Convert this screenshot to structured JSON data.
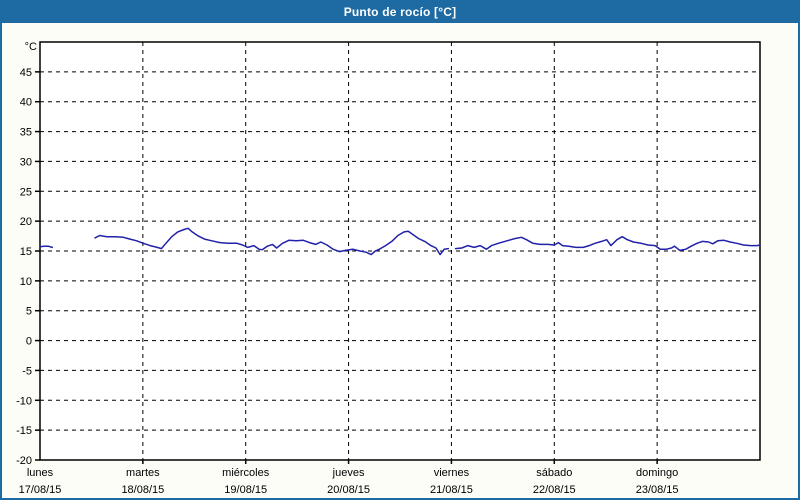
{
  "window": {
    "title": "Punto de rocío [°C]"
  },
  "colors": {
    "titlebar_bg": "#1e6aa2",
    "titlebar_text": "#ffffff",
    "window_border": "#1e6aa2",
    "window_bg": "#fcfdf7",
    "plot_bg": "#ffffff",
    "axis": "#000000",
    "grid": "#000000",
    "line": "#2121aa"
  },
  "chart_data": {
    "type": "line",
    "title": "Punto de rocío [°C]",
    "unit_label": "°C",
    "ylabel": "°C",
    "ylim": [
      -20,
      50
    ],
    "yticks": [
      45,
      40,
      35,
      30,
      25,
      20,
      15,
      10,
      5,
      0,
      -5,
      -10,
      -15,
      -20
    ],
    "grid": "dashed",
    "legend_position": "none",
    "x_days": [
      {
        "name": "lunes",
        "date": "17/08/15"
      },
      {
        "name": "martes",
        "date": "18/08/15"
      },
      {
        "name": "miércoles",
        "date": "19/08/15"
      },
      {
        "name": "jueves",
        "date": "20/08/15"
      },
      {
        "name": "viernes",
        "date": "21/08/15"
      },
      {
        "name": "sábado",
        "date": "22/08/15"
      },
      {
        "name": "domingo",
        "date": "23/08/15"
      }
    ],
    "x_unit": "day_index_0_to_7",
    "series": [
      {
        "name": "Punto de rocío",
        "color": "#2121aa",
        "segments": [
          [
            [
              0.0,
              15.7
            ],
            [
              0.04,
              15.8
            ],
            [
              0.08,
              15.8
            ],
            [
              0.12,
              15.6
            ]
          ],
          [
            [
              0.535,
              17.2
            ],
            [
              0.58,
              17.6
            ],
            [
              0.65,
              17.4
            ],
            [
              0.73,
              17.4
            ],
            [
              0.81,
              17.3
            ],
            [
              0.875,
              17.0
            ],
            [
              0.94,
              16.7
            ],
            [
              1.0,
              16.3
            ],
            [
              1.07,
              15.9
            ],
            [
              1.14,
              15.6
            ],
            [
              1.18,
              15.4
            ],
            [
              1.22,
              16.2
            ],
            [
              1.28,
              17.4
            ],
            [
              1.34,
              18.2
            ],
            [
              1.4,
              18.6
            ],
            [
              1.44,
              18.8
            ],
            [
              1.48,
              18.2
            ],
            [
              1.54,
              17.5
            ],
            [
              1.6,
              17.0
            ],
            [
              1.67,
              16.7
            ],
            [
              1.75,
              16.4
            ],
            [
              1.83,
              16.3
            ],
            [
              1.91,
              16.3
            ],
            [
              1.97,
              16.0
            ],
            [
              2.02,
              15.6
            ],
            [
              2.08,
              15.9
            ],
            [
              2.13,
              15.3
            ],
            [
              2.16,
              15.2
            ],
            [
              2.21,
              15.8
            ],
            [
              2.26,
              16.1
            ],
            [
              2.3,
              15.5
            ],
            [
              2.36,
              16.3
            ],
            [
              2.42,
              16.8
            ],
            [
              2.49,
              16.7
            ],
            [
              2.56,
              16.8
            ],
            [
              2.62,
              16.4
            ],
            [
              2.68,
              16.1
            ],
            [
              2.73,
              16.5
            ],
            [
              2.79,
              16.0
            ],
            [
              2.85,
              15.3
            ],
            [
              2.91,
              14.9
            ],
            [
              2.97,
              15.1
            ],
            [
              3.04,
              15.3
            ],
            [
              3.11,
              15.0
            ],
            [
              3.17,
              14.8
            ],
            [
              3.22,
              14.4
            ],
            [
              3.26,
              15.0
            ],
            [
              3.3,
              15.3
            ],
            [
              3.36,
              15.9
            ],
            [
              3.42,
              16.6
            ],
            [
              3.48,
              17.6
            ],
            [
              3.54,
              18.2
            ],
            [
              3.58,
              18.3
            ],
            [
              3.63,
              17.7
            ],
            [
              3.68,
              17.1
            ],
            [
              3.74,
              16.6
            ],
            [
              3.8,
              15.9
            ],
            [
              3.85,
              15.5
            ],
            [
              3.89,
              14.4
            ],
            [
              3.93,
              15.3
            ],
            [
              3.97,
              15.4
            ]
          ],
          [
            [
              4.04,
              15.4
            ],
            [
              4.1,
              15.5
            ],
            [
              4.16,
              15.9
            ],
            [
              4.22,
              15.6
            ],
            [
              4.28,
              15.9
            ],
            [
              4.34,
              15.3
            ],
            [
              4.39,
              15.9
            ],
            [
              4.46,
              16.3
            ],
            [
              4.54,
              16.7
            ],
            [
              4.62,
              17.1
            ],
            [
              4.68,
              17.3
            ],
            [
              4.73,
              16.9
            ],
            [
              4.79,
              16.3
            ],
            [
              4.86,
              16.1
            ],
            [
              4.94,
              16.1
            ],
            [
              5.0,
              16.0
            ],
            [
              5.04,
              16.4
            ],
            [
              5.08,
              15.9
            ],
            [
              5.14,
              15.8
            ],
            [
              5.21,
              15.6
            ],
            [
              5.28,
              15.6
            ],
            [
              5.34,
              15.9
            ],
            [
              5.4,
              16.3
            ],
            [
              5.46,
              16.6
            ],
            [
              5.51,
              16.9
            ],
            [
              5.55,
              15.9
            ],
            [
              5.61,
              16.9
            ],
            [
              5.66,
              17.4
            ],
            [
              5.71,
              16.9
            ],
            [
              5.77,
              16.5
            ],
            [
              5.84,
              16.3
            ],
            [
              5.91,
              16.0
            ],
            [
              5.98,
              15.9
            ],
            [
              6.03,
              15.3
            ],
            [
              6.09,
              15.3
            ],
            [
              6.14,
              15.5
            ],
            [
              6.17,
              15.8
            ],
            [
              6.22,
              15.1
            ],
            [
              6.28,
              15.3
            ],
            [
              6.33,
              15.8
            ],
            [
              6.39,
              16.3
            ],
            [
              6.44,
              16.6
            ],
            [
              6.5,
              16.5
            ],
            [
              6.54,
              16.2
            ],
            [
              6.59,
              16.7
            ],
            [
              6.65,
              16.8
            ],
            [
              6.71,
              16.5
            ],
            [
              6.77,
              16.3
            ],
            [
              6.84,
              16.0
            ],
            [
              6.91,
              15.9
            ],
            [
              6.97,
              15.9
            ],
            [
              7.0,
              16.0
            ]
          ]
        ]
      }
    ]
  }
}
